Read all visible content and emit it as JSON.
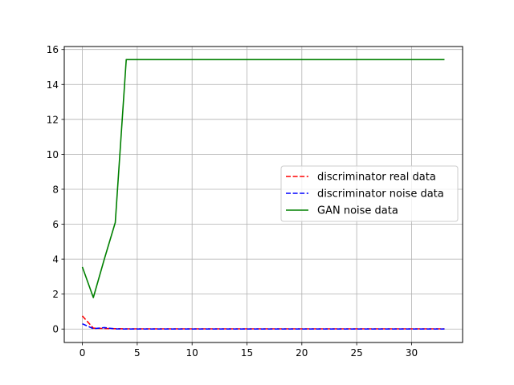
{
  "chart_data": {
    "type": "line",
    "title": "",
    "xlabel": "",
    "ylabel": "",
    "xlim": [
      -1.65,
      34.65
    ],
    "ylim": [
      -0.77,
      16.17
    ],
    "grid": true,
    "legend": "center-right",
    "x_ticks": [
      0,
      5,
      10,
      15,
      20,
      25,
      30
    ],
    "y_ticks": [
      0,
      2,
      4,
      6,
      8,
      10,
      12,
      14,
      16
    ],
    "x": [
      0,
      1,
      2,
      3,
      4,
      5,
      6,
      7,
      8,
      9,
      10,
      11,
      12,
      13,
      14,
      15,
      16,
      17,
      18,
      19,
      20,
      21,
      22,
      23,
      24,
      25,
      26,
      27,
      28,
      29,
      30,
      31,
      32,
      33
    ],
    "series": [
      {
        "name": "discriminator real data",
        "color": "#ff0000",
        "style": "dashed",
        "values": [
          0.75,
          0.05,
          0.03,
          0.02,
          0.01,
          0.01,
          0.01,
          0.01,
          0.01,
          0.01,
          0.01,
          0.01,
          0.01,
          0.01,
          0.01,
          0.01,
          0.01,
          0.01,
          0.01,
          0.01,
          0.01,
          0.01,
          0.01,
          0.01,
          0.01,
          0.01,
          0.01,
          0.01,
          0.01,
          0.01,
          0.01,
          0.01,
          0.01,
          0.01
        ]
      },
      {
        "name": "discriminator noise data",
        "color": "#0000ff",
        "style": "dashed",
        "values": [
          0.3,
          0.02,
          0.08,
          0.01,
          0.0,
          0.0,
          0.0,
          0.0,
          0.0,
          0.0,
          0.0,
          0.0,
          0.0,
          0.0,
          0.0,
          0.0,
          0.0,
          0.0,
          0.0,
          0.0,
          0.0,
          0.0,
          0.0,
          0.0,
          0.0,
          0.0,
          0.0,
          0.0,
          0.0,
          0.0,
          0.0,
          0.0,
          0.0,
          0.0
        ]
      },
      {
        "name": "GAN noise data",
        "color": "#008000",
        "style": "solid",
        "values": [
          3.55,
          1.8,
          4.0,
          6.1,
          15.42,
          15.42,
          15.42,
          15.42,
          15.42,
          15.42,
          15.42,
          15.42,
          15.42,
          15.42,
          15.42,
          15.42,
          15.42,
          15.42,
          15.42,
          15.42,
          15.42,
          15.42,
          15.42,
          15.42,
          15.42,
          15.42,
          15.42,
          15.42,
          15.42,
          15.42,
          15.42,
          15.42,
          15.42,
          15.42
        ]
      }
    ]
  }
}
